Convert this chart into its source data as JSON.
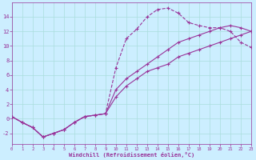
{
  "xlabel": "Windchill (Refroidissement éolien,°C)",
  "bg_color": "#cceeff",
  "line_color": "#993399",
  "grid_color": "#aadddd",
  "series1_x": [
    0,
    1,
    2,
    3,
    4,
    5,
    6,
    7,
    8,
    9,
    10,
    11,
    12,
    13,
    14,
    15,
    16,
    17,
    18,
    19,
    20,
    21,
    22,
    23
  ],
  "series1_y": [
    0.3,
    -0.5,
    -1.2,
    -2.5,
    -2.0,
    -1.5,
    -0.5,
    0.3,
    0.5,
    0.7,
    7.0,
    11.0,
    12.3,
    14.0,
    15.0,
    15.2,
    14.5,
    13.2,
    12.8,
    12.5,
    12.5,
    12.0,
    10.5,
    9.8
  ],
  "series2_x": [
    0,
    1,
    2,
    3,
    4,
    5,
    6,
    7,
    8,
    9,
    10,
    11,
    12,
    13,
    14,
    15,
    16,
    17,
    18,
    19,
    20,
    21,
    22,
    23
  ],
  "series2_y": [
    0.3,
    -0.5,
    -1.2,
    -2.5,
    -2.0,
    -1.5,
    -0.5,
    0.3,
    0.5,
    0.7,
    3.0,
    4.5,
    5.5,
    6.5,
    7.0,
    7.5,
    8.5,
    9.0,
    9.5,
    10.0,
    10.5,
    11.0,
    11.5,
    12.0
  ],
  "series3_x": [
    0,
    1,
    2,
    3,
    4,
    5,
    6,
    7,
    8,
    9,
    10,
    11,
    12,
    13,
    14,
    15,
    16,
    17,
    18,
    19,
    20,
    21,
    22,
    23
  ],
  "series3_y": [
    0.3,
    -0.5,
    -1.2,
    -2.5,
    -2.0,
    -1.5,
    -0.5,
    0.3,
    0.5,
    0.7,
    4.0,
    5.5,
    6.5,
    7.5,
    8.5,
    9.5,
    10.5,
    11.0,
    11.5,
    12.0,
    12.5,
    12.8,
    12.5,
    12.0
  ],
  "xlim": [
    0,
    23
  ],
  "ylim": [
    -3.5,
    16
  ],
  "xticks": [
    0,
    1,
    2,
    3,
    4,
    5,
    6,
    7,
    8,
    9,
    10,
    11,
    12,
    13,
    14,
    15,
    16,
    17,
    18,
    19,
    20,
    21,
    22,
    23
  ],
  "yticks": [
    -2,
    0,
    2,
    4,
    6,
    8,
    10,
    12,
    14
  ]
}
